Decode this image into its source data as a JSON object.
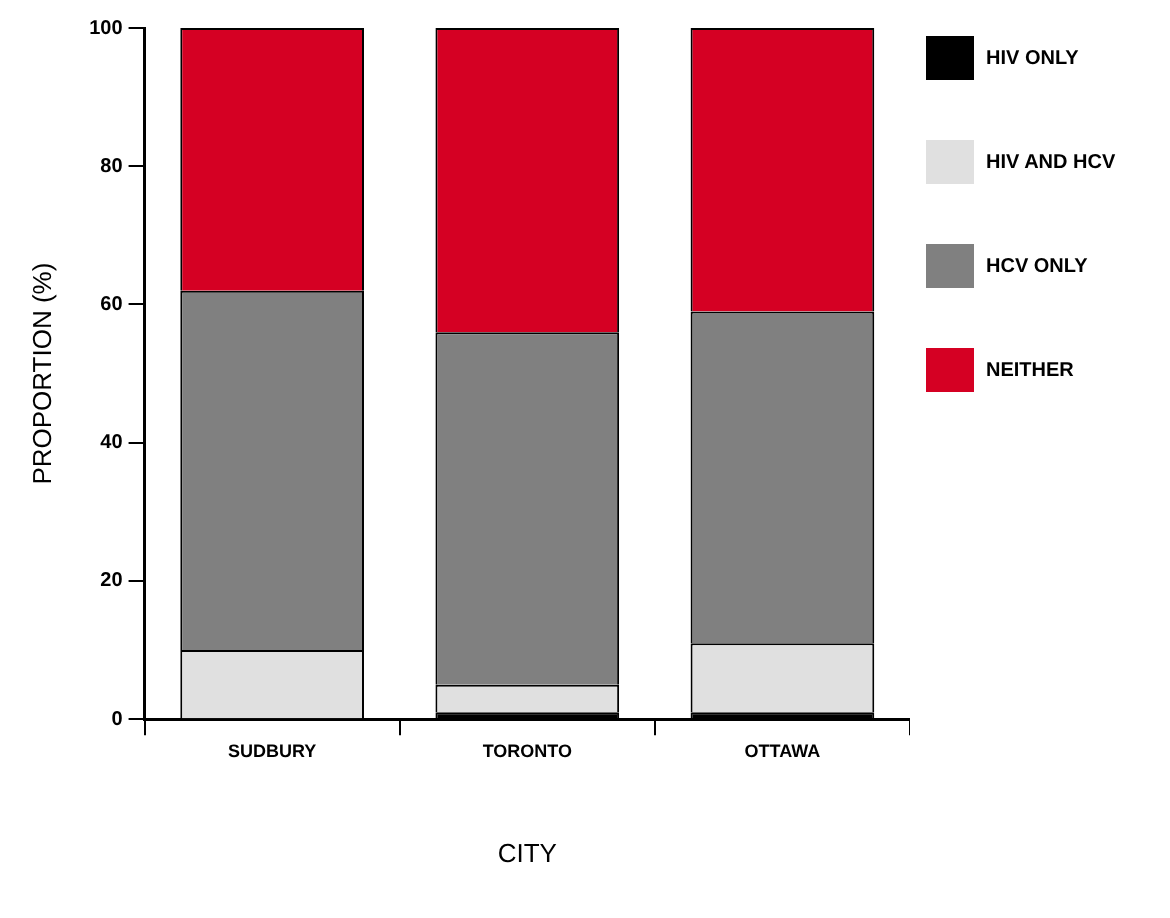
{
  "chart_data": {
    "type": "bar",
    "stacked": true,
    "xlabel": "CITY",
    "ylabel": "PROPORTION (%)",
    "categories": [
      "SUDBURY",
      "TORONTO",
      "OTTAWA"
    ],
    "series": [
      {
        "name": "HIV ONLY",
        "color": "#000000",
        "values": [
          0,
          1,
          1
        ]
      },
      {
        "name": "HIV AND HCV",
        "color": "#e0e0e0",
        "values": [
          10,
          4,
          10
        ]
      },
      {
        "name": "HCV ONLY",
        "color": "#808080",
        "values": [
          52,
          51,
          48
        ]
      },
      {
        "name": "NEITHER",
        "color": "#d50023",
        "values": [
          38,
          44,
          41
        ]
      }
    ],
    "ylim": [
      0,
      100
    ],
    "yticks": [
      0,
      20,
      40,
      60,
      80,
      100
    ],
    "grid": false,
    "legend": "right"
  }
}
